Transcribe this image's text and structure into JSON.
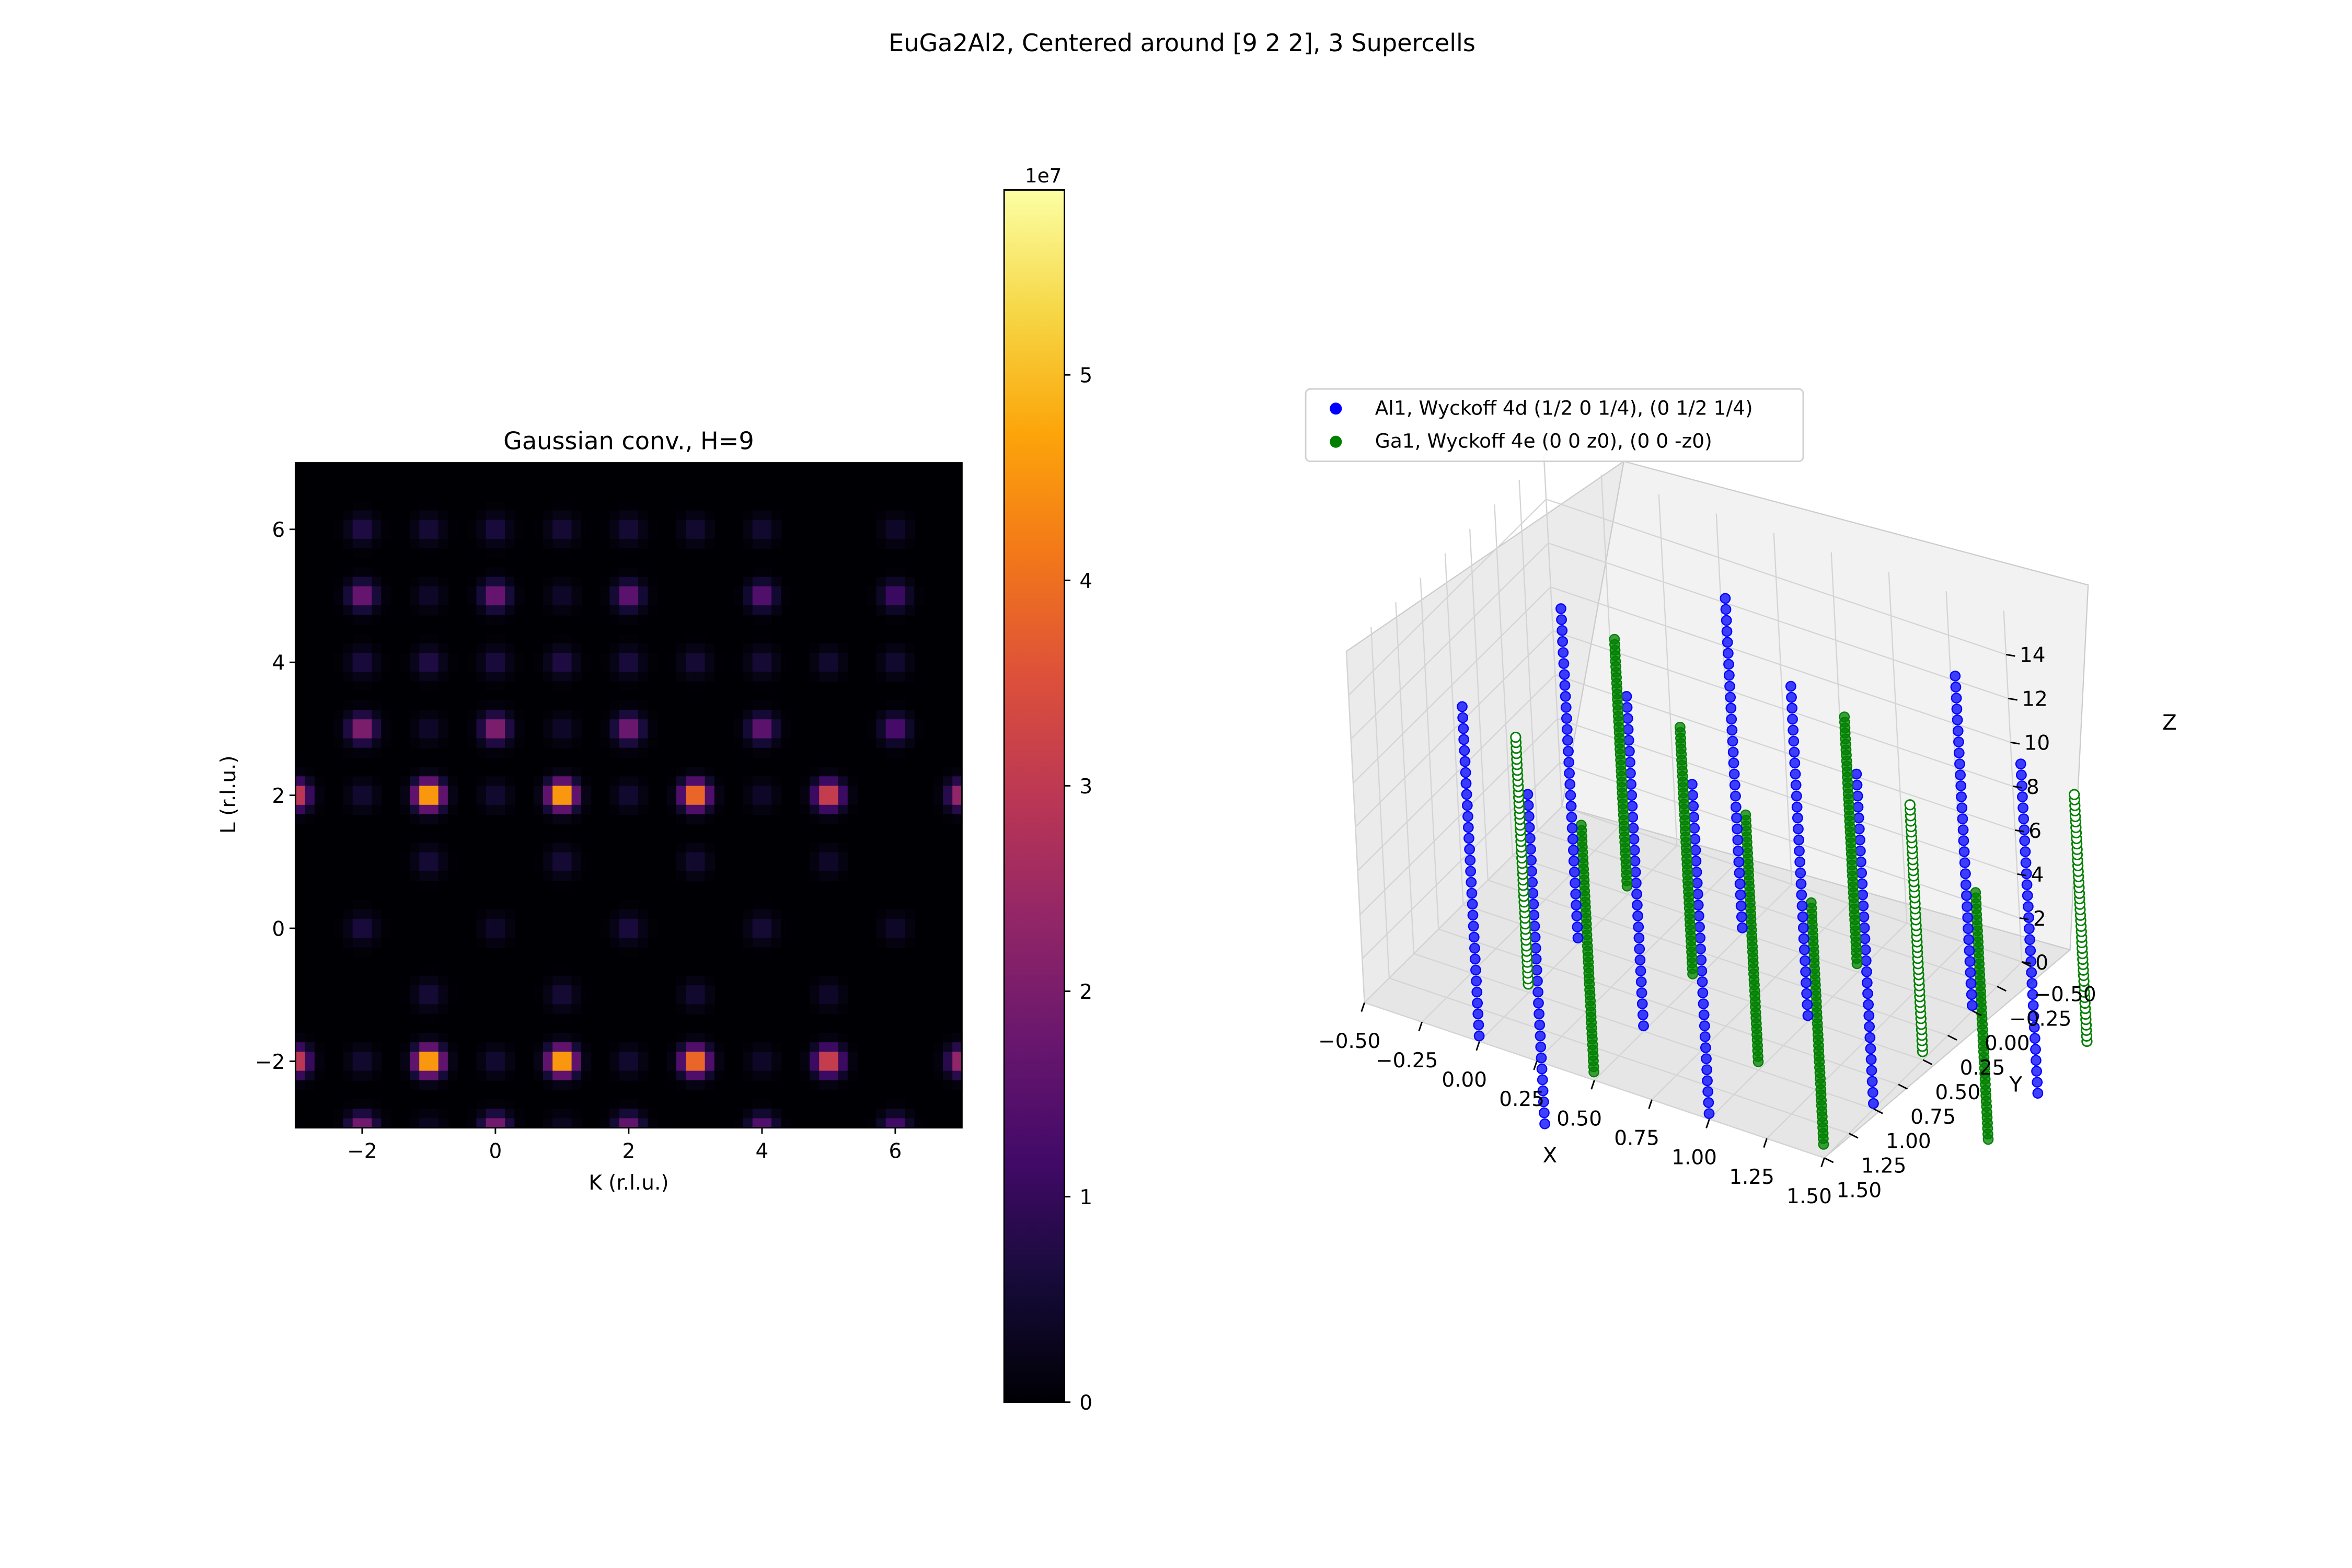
{
  "figure": {
    "suptitle": "EuGa2Al2, Centered around [9 2 2], 3 Supercells"
  },
  "chart_data": [
    {
      "type": "heatmap",
      "title": "Gaussian conv., H=9",
      "xlabel": "K (r.l.u.)",
      "ylabel": "L (r.l.u.)",
      "xlim": [
        -3,
        7
      ],
      "ylim": [
        -3,
        7
      ],
      "xticks": [
        "−2",
        "0",
        "2",
        "4",
        "6"
      ],
      "xtick_values": [
        -2,
        0,
        2,
        4,
        6
      ],
      "yticks": [
        "−2",
        "0",
        "2",
        "4",
        "6"
      ],
      "ytick_values": [
        -2,
        0,
        2,
        4,
        6
      ],
      "grid": false,
      "colormap": "inferno",
      "sigma": 0.14,
      "peaks": [
        {
          "K": -3,
          "L": 2,
          "I": 38000000.0
        },
        {
          "K": -1,
          "L": 2,
          "I": 59000000.0
        },
        {
          "K": 1,
          "L": 2,
          "I": 59000000.0
        },
        {
          "K": 3,
          "L": 2,
          "I": 50000000.0
        },
        {
          "K": 5,
          "L": 2,
          "I": 40000000.0
        },
        {
          "K": 7,
          "L": 2,
          "I": 30000000.0
        },
        {
          "K": -3,
          "L": -2,
          "I": 38000000.0
        },
        {
          "K": -1,
          "L": -2,
          "I": 59000000.0
        },
        {
          "K": 1,
          "L": -2,
          "I": 59000000.0
        },
        {
          "K": 3,
          "L": -2,
          "I": 50000000.0
        },
        {
          "K": 5,
          "L": -2,
          "I": 40000000.0
        },
        {
          "K": 7,
          "L": -2,
          "I": 30000000.0
        },
        {
          "K": -2,
          "L": 3,
          "I": 26000000.0
        },
        {
          "K": 0,
          "L": 3,
          "I": 26000000.0
        },
        {
          "K": 2,
          "L": 3,
          "I": 23000000.0
        },
        {
          "K": 4,
          "L": 3,
          "I": 20000000.0
        },
        {
          "K": 6,
          "L": 3,
          "I": 16000000.0
        },
        {
          "K": -2,
          "L": 5,
          "I": 22000000.0
        },
        {
          "K": 0,
          "L": 5,
          "I": 22000000.0
        },
        {
          "K": 2,
          "L": 5,
          "I": 20000000.0
        },
        {
          "K": 4,
          "L": 5,
          "I": 18000000.0
        },
        {
          "K": 6,
          "L": 5,
          "I": 14000000.0
        },
        {
          "K": -2,
          "L": -3,
          "I": 24000000.0
        },
        {
          "K": 0,
          "L": -3,
          "I": 24000000.0
        },
        {
          "K": 2,
          "L": -3,
          "I": 21000000.0
        },
        {
          "K": 4,
          "L": -3,
          "I": 18000000.0
        },
        {
          "K": 6,
          "L": -3,
          "I": 15000000.0
        },
        {
          "K": -2,
          "L": 4,
          "I": 8000000.0
        },
        {
          "K": 0,
          "L": 4,
          "I": 8000000.0
        },
        {
          "K": 2,
          "L": 4,
          "I": 8000000.0
        },
        {
          "K": 4,
          "L": 4,
          "I": 7000000.0
        },
        {
          "K": 6,
          "L": 4,
          "I": 6000000.0
        },
        {
          "K": -1,
          "L": 4,
          "I": 9000000.0
        },
        {
          "K": 1,
          "L": 4,
          "I": 9000000.0
        },
        {
          "K": 3,
          "L": 4,
          "I": 7000000.0
        },
        {
          "K": 5,
          "L": 4,
          "I": 6000000.0
        },
        {
          "K": -2,
          "L": 0,
          "I": 8000000.0
        },
        {
          "K": 0,
          "L": 0,
          "I": 5000000.0
        },
        {
          "K": 2,
          "L": 0,
          "I": 8000000.0
        },
        {
          "K": 4,
          "L": 0,
          "I": 7000000.0
        },
        {
          "K": 6,
          "L": 0,
          "I": 5000000.0
        },
        {
          "K": -1,
          "L": 6,
          "I": 7000000.0
        },
        {
          "K": 1,
          "L": 6,
          "I": 7000000.0
        },
        {
          "K": 3,
          "L": 6,
          "I": 6000000.0
        },
        {
          "K": -2,
          "L": 6,
          "I": 9000000.0
        },
        {
          "K": 0,
          "L": 6,
          "I": 8000000.0
        },
        {
          "K": 2,
          "L": 6,
          "I": 7000000.0
        },
        {
          "K": 4,
          "L": 6,
          "I": 6000000.0
        },
        {
          "K": 6,
          "L": 6,
          "I": 5000000.0
        },
        {
          "K": -1,
          "L": 1,
          "I": 7000000.0
        },
        {
          "K": 1,
          "L": 1,
          "I": 7000000.0
        },
        {
          "K": 3,
          "L": 1,
          "I": 6000000.0
        },
        {
          "K": 5,
          "L": 1,
          "I": 5000000.0
        },
        {
          "K": -1,
          "L": -1,
          "I": 7000000.0
        },
        {
          "K": 1,
          "L": -1,
          "I": 7000000.0
        },
        {
          "K": 3,
          "L": -1,
          "I": 6000000.0
        },
        {
          "K": 5,
          "L": -1,
          "I": 5000000.0
        },
        {
          "K": -2,
          "L": 2,
          "I": 6000000.0
        },
        {
          "K": 0,
          "L": 2,
          "I": 6000000.0
        },
        {
          "K": 2,
          "L": 2,
          "I": 6000000.0
        },
        {
          "K": 4,
          "L": 2,
          "I": 5000000.0
        },
        {
          "K": -2,
          "L": -2,
          "I": 6000000.0
        },
        {
          "K": 0,
          "L": -2,
          "I": 6000000.0
        },
        {
          "K": 2,
          "L": -2,
          "I": 6000000.0
        },
        {
          "K": 4,
          "L": -2,
          "I": 5000000.0
        },
        {
          "K": -1,
          "L": 3,
          "I": 5000000.0
        },
        {
          "K": 1,
          "L": 3,
          "I": 5000000.0
        },
        {
          "K": -1,
          "L": 5,
          "I": 5000000.0
        },
        {
          "K": 1,
          "L": 5,
          "I": 5000000.0
        },
        {
          "K": -1,
          "L": -3,
          "I": 4000000.0
        },
        {
          "K": 1,
          "L": -3,
          "I": 4000000.0
        }
      ],
      "colorbar": {
        "min": 0,
        "max": 59000000.0,
        "ticks": [
          "0",
          "1",
          "2",
          "3",
          "4",
          "5"
        ],
        "tick_values": [
          0,
          10000000.0,
          20000000.0,
          30000000.0,
          40000000.0,
          50000000.0
        ],
        "offset_label": "1e7"
      }
    },
    {
      "type": "scatter",
      "subtype": "scatter3d",
      "xlabel": "X",
      "ylabel": "Y",
      "zlabel": "Z",
      "xlim": [
        -0.5,
        1.5
      ],
      "ylim": [
        -0.5,
        1.5
      ],
      "zlim": [
        0,
        16
      ],
      "xticks": [
        "−0.50",
        "−0.25",
        "0.00",
        "0.25",
        "0.50",
        "0.75",
        "1.00",
        "1.25",
        "1.50"
      ],
      "xtick_values": [
        -0.5,
        -0.25,
        0,
        0.25,
        0.5,
        0.75,
        1.0,
        1.25,
        1.5
      ],
      "yticks": [
        "−0.50",
        "−0.25",
        "0.00",
        "0.25",
        "0.50",
        "0.75",
        "1.00",
        "1.25",
        "1.50"
      ],
      "ytick_values": [
        -0.5,
        -0.25,
        0,
        0.25,
        0.5,
        0.75,
        1.0,
        1.25,
        1.5
      ],
      "zticks": [
        "0",
        "2",
        "4",
        "6",
        "8",
        "10",
        "12",
        "14"
      ],
      "ztick_values": [
        0,
        2,
        4,
        6,
        8,
        10,
        12,
        14
      ],
      "legend_position": "upper-left",
      "series": [
        {
          "name": "Al1, Wyckoff 4d (1/2 0 1/4), (0 1/2 1/4)",
          "color": "#0000ff",
          "columns_xy": [
            [
              0.5,
              0
            ],
            [
              0,
              0.5
            ],
            [
              0.5,
              1
            ],
            [
              1,
              0.5
            ],
            [
              1.5,
              1
            ],
            [
              1,
              1.5
            ],
            [
              0.5,
              2
            ],
            [
              1.5,
              0
            ],
            [
              2,
              0.5
            ],
            [
              0,
              1.5
            ]
          ],
          "z_values": [
            0.25,
            0.75,
            1.25,
            1.75,
            2.25,
            2.75,
            3.25,
            3.75,
            4.25,
            4.75,
            5.25,
            5.75,
            6.25,
            6.75,
            7.25,
            7.75,
            8.25,
            8.75,
            9.25,
            9.75,
            10.25,
            10.75,
            11.25,
            11.75,
            12.25,
            12.75,
            13.25,
            13.75,
            14.25,
            14.75,
            15.25
          ]
        },
        {
          "name": "Ga1, Wyckoff 4e (0 0 z0), (0 0 -z0)",
          "color": "#008000",
          "columns_xy": [
            [
              0,
              0
            ],
            [
              1,
              0
            ],
            [
              0,
              1
            ],
            [
              1,
              1
            ],
            [
              0.5,
              0.5
            ],
            [
              1.5,
              0.5
            ],
            [
              0.5,
              1.5
            ],
            [
              1.5,
              1.5
            ],
            [
              2,
              0
            ],
            [
              2,
              1
            ]
          ],
          "z_values": [
            0.38,
            0.62,
            0.88,
            1.12,
            1.38,
            1.62,
            1.88,
            2.12,
            2.38,
            2.62,
            2.88,
            3.12,
            3.38,
            3.62,
            3.88,
            4.12,
            4.38,
            4.62,
            4.88,
            5.12,
            5.38,
            5.62,
            5.88,
            6.12,
            6.38,
            6.62,
            6.88,
            7.12,
            7.38,
            7.62,
            7.88,
            8.12,
            8.38,
            8.62,
            8.88,
            9.12,
            9.38,
            9.62,
            9.88,
            10.12,
            10.38,
            10.62,
            10.88,
            11.12,
            11.38,
            11.62
          ]
        }
      ]
    }
  ]
}
